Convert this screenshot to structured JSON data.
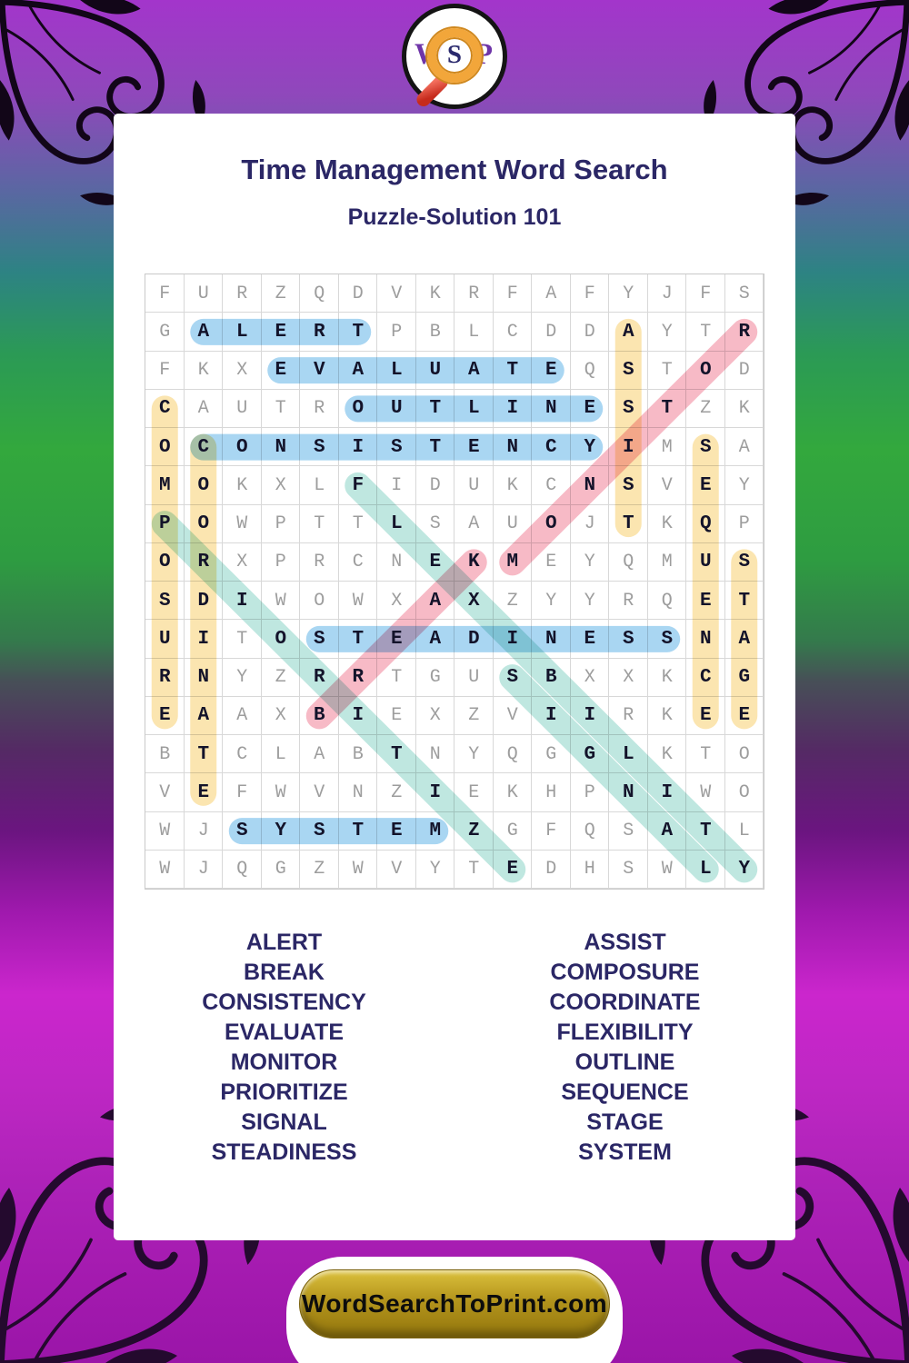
{
  "header": {
    "title": "Time Management Word Search",
    "subtitle": "Puzzle-Solution 101"
  },
  "logo": {
    "w": "W",
    "s": "S",
    "p": "P"
  },
  "grid": {
    "rows": [
      "FURZQDVKRFAFYJFS",
      "GALERTPBLCDDAYTR",
      "FKXEVALUATEQSTOD",
      "CAUTROUTLINESTZK",
      "OCONSISTENCYIMSA",
      "MOKXLFIDUKCNSVEY",
      "POWPTTLSAUOJTKQP",
      "ORXPRCNEKMEYQMUS",
      "SDIWOWXAXZYYRQET",
      "UITOSTEADINESSNA",
      "RNYZRRTGUSBXXKCG",
      "EAAXBIEXZVIIRKEE",
      "BTCLABTNYQGGLKTO",
      "VEFWVNZIEKHPNIWO",
      "WJSYSTEMZGFQSATL",
      "WJQGZWVYTEDHSWLY"
    ]
  },
  "highlight_colors": {
    "blue": "#a9d6f2",
    "yellow": "#fbe5b0",
    "pink": "#f7bac6",
    "teal": "#bfe7e0"
  },
  "solutions": [
    {
      "word": "ALERT",
      "color": "blue",
      "start": [
        2,
        2
      ],
      "end": [
        2,
        6
      ]
    },
    {
      "word": "EVALUATE",
      "color": "blue",
      "start": [
        3,
        4
      ],
      "end": [
        3,
        11
      ]
    },
    {
      "word": "OUTLINE",
      "color": "blue",
      "start": [
        4,
        6
      ],
      "end": [
        4,
        12
      ]
    },
    {
      "word": "CONSISTENCY",
      "color": "blue",
      "start": [
        5,
        2
      ],
      "end": [
        5,
        12
      ]
    },
    {
      "word": "STEADINESS",
      "color": "blue",
      "start": [
        10,
        5
      ],
      "end": [
        10,
        14
      ]
    },
    {
      "word": "SYSTEM",
      "color": "blue",
      "start": [
        15,
        3
      ],
      "end": [
        15,
        8
      ]
    },
    {
      "word": "COMPOSURE",
      "color": "yellow",
      "start": [
        4,
        1
      ],
      "end": [
        12,
        1
      ]
    },
    {
      "word": "COORDINATE",
      "color": "yellow",
      "start": [
        5,
        2
      ],
      "end": [
        14,
        2
      ]
    },
    {
      "word": "ASSIST",
      "color": "yellow",
      "start": [
        2,
        13
      ],
      "end": [
        7,
        13
      ]
    },
    {
      "word": "SEQUENCE",
      "color": "yellow",
      "start": [
        5,
        15
      ],
      "end": [
        12,
        15
      ]
    },
    {
      "word": "STAGE",
      "color": "yellow",
      "start": [
        8,
        16
      ],
      "end": [
        12,
        16
      ]
    },
    {
      "word": "MONITOR",
      "color": "pink",
      "start": [
        8,
        10
      ],
      "end": [
        2,
        16
      ]
    },
    {
      "word": "BREAK",
      "color": "pink",
      "start": [
        12,
        5
      ],
      "end": [
        8,
        9
      ]
    },
    {
      "word": "PRIORITIZE",
      "color": "teal",
      "start": [
        7,
        1
      ],
      "end": [
        16,
        10
      ]
    },
    {
      "word": "FLEXIBILITY",
      "color": "teal",
      "start": [
        6,
        6
      ],
      "end": [
        16,
        16
      ]
    },
    {
      "word": "SIGNAL",
      "color": "teal",
      "start": [
        11,
        10
      ],
      "end": [
        16,
        15
      ]
    }
  ],
  "word_list": {
    "left": [
      "ALERT",
      "BREAK",
      "CONSISTENCY",
      "EVALUATE",
      "MONITOR",
      "PRIORITIZE",
      "SIGNAL",
      "STEADINESS"
    ],
    "right": [
      "ASSIST",
      "COMPOSURE",
      "COORDINATE",
      "FLEXIBILITY",
      "OUTLINE",
      "SEQUENCE",
      "STAGE",
      "SYSTEM"
    ]
  },
  "footer": {
    "site": "WordSearchToPrint.com"
  }
}
